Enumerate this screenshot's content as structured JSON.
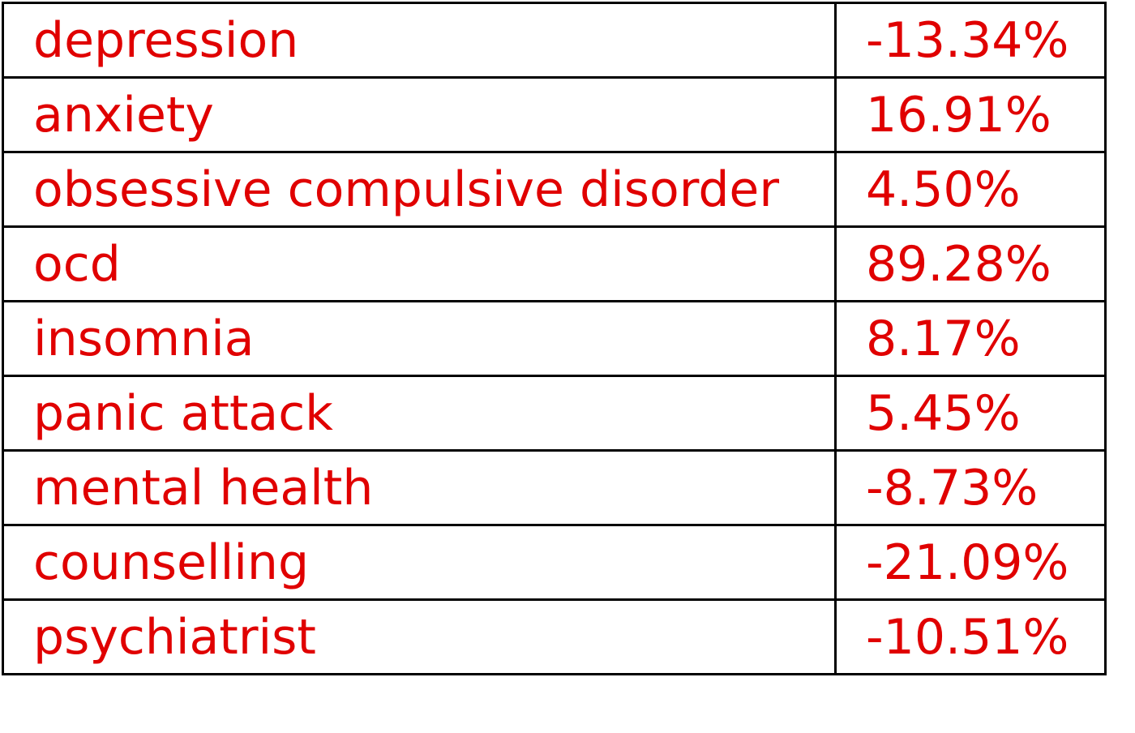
{
  "table": {
    "rows": [
      {
        "term": "depression",
        "value": "-13.34%"
      },
      {
        "term": "anxiety",
        "value": "16.91%"
      },
      {
        "term": "obsessive compulsive disorder",
        "value": "4.50%"
      },
      {
        "term": "ocd",
        "value": "89.28%"
      },
      {
        "term": "insomnia",
        "value": "8.17%"
      },
      {
        "term": "panic attack",
        "value": "5.45%"
      },
      {
        "term": "mental health",
        "value": "-8.73%"
      },
      {
        "term": "counselling",
        "value": "-21.09%"
      },
      {
        "term": "psychiatrist",
        "value": "-10.51%"
      }
    ]
  },
  "colors": {
    "text": "#e00000",
    "border": "#000000",
    "background": "#ffffff"
  }
}
